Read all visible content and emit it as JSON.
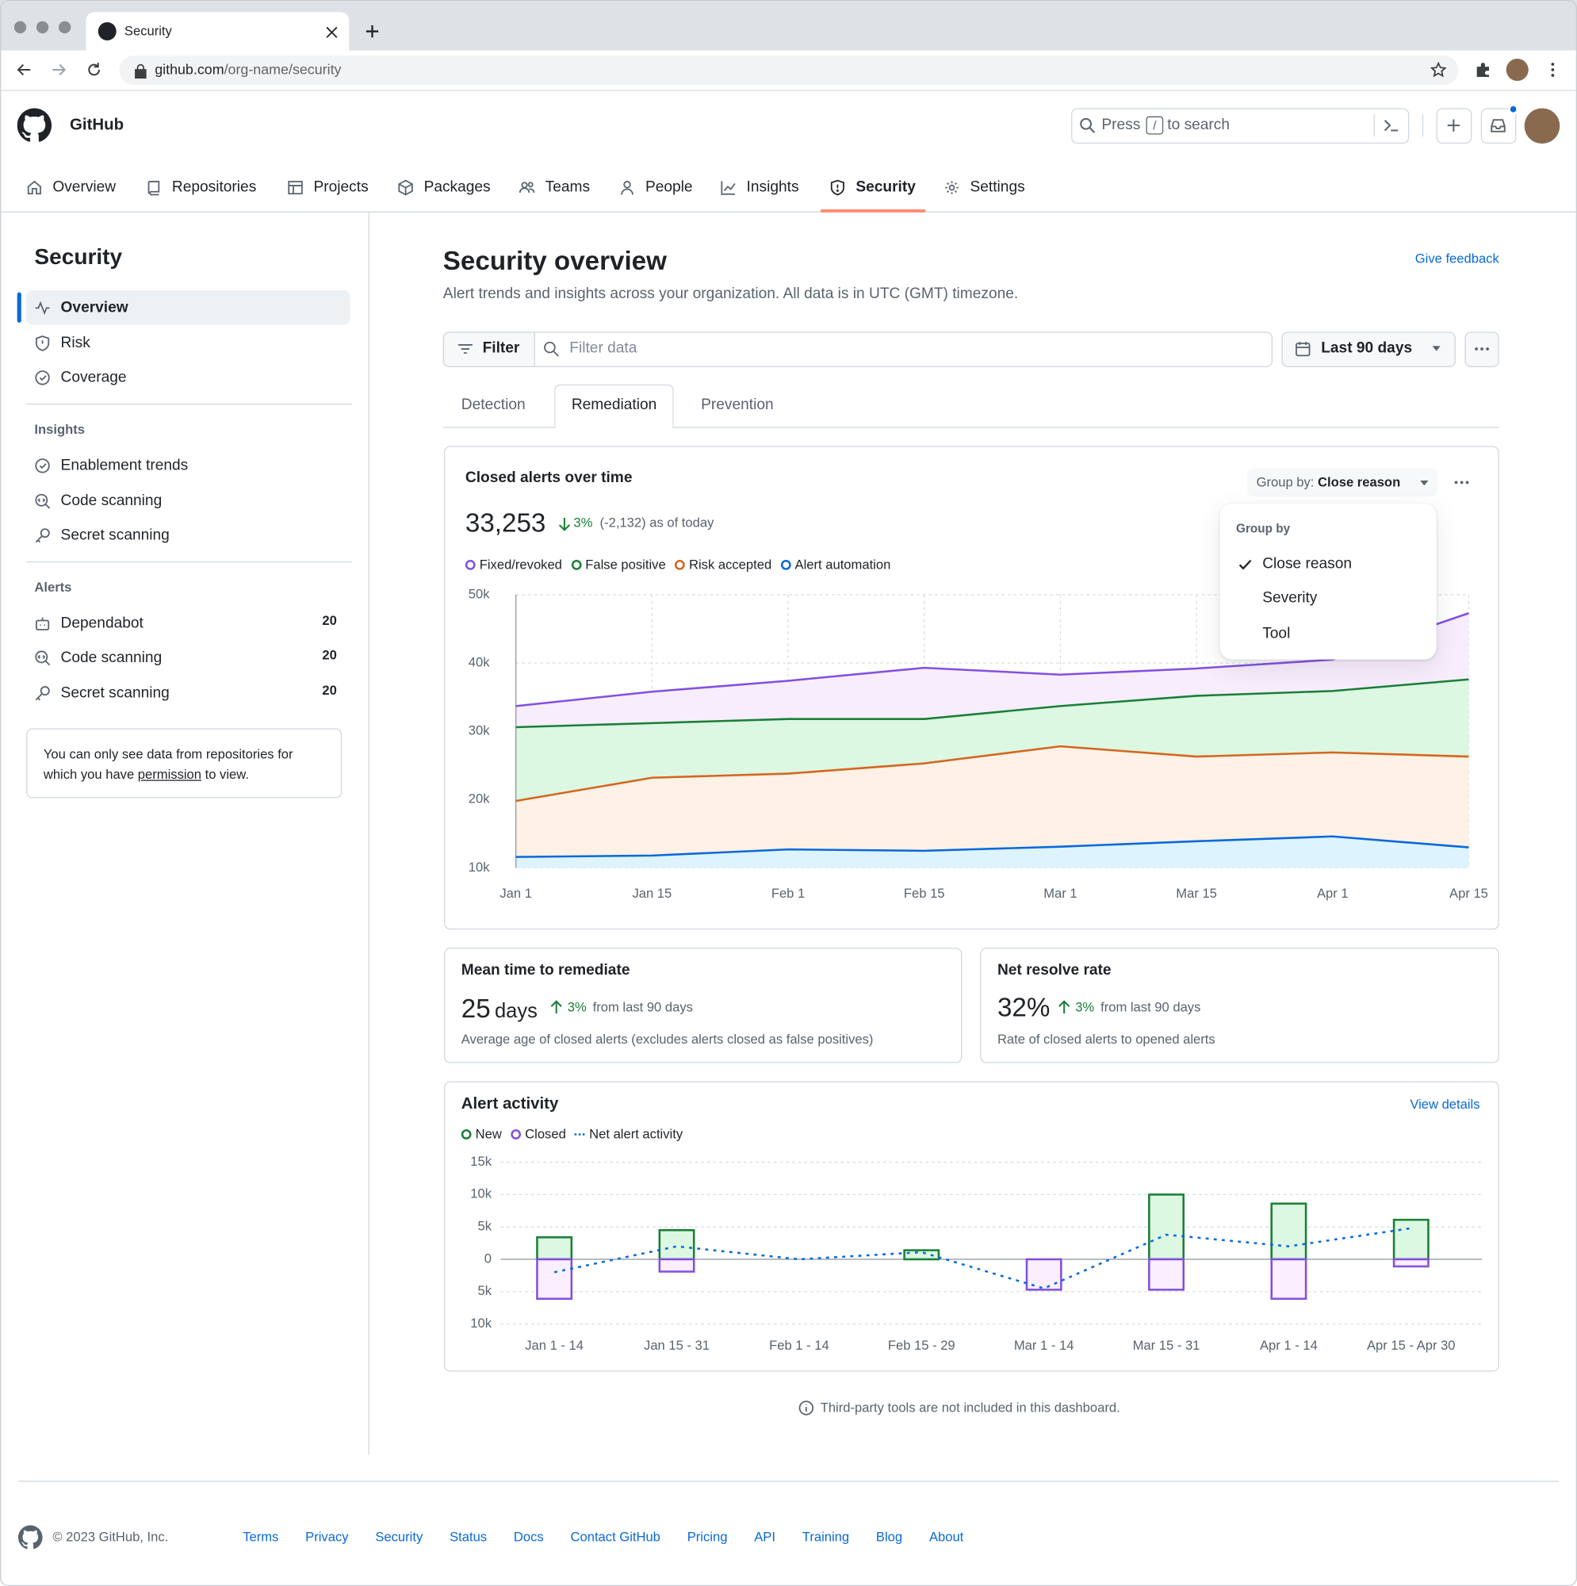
{
  "browser": {
    "tab_title": "Security",
    "url_host": "github.com",
    "url_path": "/org-name/security"
  },
  "header": {
    "brand": "GitHub",
    "search_prefix": "Press",
    "search_key": "/",
    "search_suffix": "to search"
  },
  "nav": {
    "items": [
      "Overview",
      "Repositories",
      "Projects",
      "Packages",
      "Teams",
      "People",
      "Insights",
      "Security",
      "Settings"
    ],
    "active": 7
  },
  "sidebar": {
    "title": "Security",
    "items": [
      "Overview",
      "Risk",
      "Coverage"
    ],
    "active": 0,
    "insights_heading": "Insights",
    "insights": [
      "Enablement trends",
      "Code scanning",
      "Secret scanning"
    ],
    "alerts_heading": "Alerts",
    "alerts": [
      {
        "label": "Dependabot",
        "count": 20
      },
      {
        "label": "Code scanning",
        "count": 20
      },
      {
        "label": "Secret scanning",
        "count": 20
      }
    ],
    "note": {
      "before": "You can only see data from repositories for which you have ",
      "link": "permission",
      "after": " to view."
    }
  },
  "main": {
    "title": "Security overview",
    "feedback": "Give feedback",
    "description": "Alert trends and insights across your organization. All data is in UTC (GMT) timezone.",
    "filter_button": "Filter",
    "filter_placeholder": "Filter data",
    "date_range": "Last 90 days",
    "tabs": [
      "Detection",
      "Remediation",
      "Prevention"
    ],
    "active_tab": 1
  },
  "closed_card": {
    "group_by_label": "Group by:",
    "group_by_value": "Close reason",
    "total": "33,253",
    "change": "3%",
    "change_detail": "(-2,132) as of today",
    "menu": {
      "heading": "Group by",
      "options": [
        "Close reason",
        "Severity",
        "Tool"
      ],
      "selected": 0
    }
  },
  "metrics": [
    {
      "title": "Mean time to remediate",
      "value": "25",
      "unit": "days",
      "change": "3%",
      "change_detail": "from last 90 days",
      "description": "Average age of closed alerts (excludes alerts closed as false positives)"
    },
    {
      "title": "Net resolve rate",
      "value": "32%",
      "change": "3%",
      "change_detail": "from last 90 days",
      "description": "Rate of closed alerts to opened alerts"
    }
  ],
  "activity_card": {
    "link": "View details"
  },
  "notice": "Third-party tools are not included in this dashboard.",
  "footer": {
    "copyright": "© 2023 GitHub, Inc.",
    "links": [
      "Terms",
      "Privacy",
      "Security",
      "Status",
      "Docs",
      "Contact GitHub",
      "Pricing",
      "API",
      "Training",
      "Blog",
      "About"
    ]
  },
  "chart_data": [
    {
      "type": "area",
      "title": "Closed alerts over time",
      "categories": [
        "Jan 1",
        "Jan 15",
        "Feb 1",
        "Feb 15",
        "Mar 1",
        "Mar 15",
        "Apr 1",
        "Apr 15"
      ],
      "series": [
        {
          "name": "Fixed/revoked",
          "color": "#8250df",
          "fill": "#f8edfd",
          "values": [
            33700,
            35800,
            37400,
            39300,
            38300,
            39200,
            40500,
            47300
          ]
        },
        {
          "name": "False positive",
          "color": "#1a7f37",
          "fill": "#dcf7e2",
          "values": [
            30600,
            31200,
            31800,
            31800,
            33700,
            35200,
            35900,
            37600
          ]
        },
        {
          "name": "Risk accepted",
          "color": "#d4661e",
          "fill": "#fff1e6",
          "values": [
            19800,
            23200,
            23800,
            25300,
            27800,
            26300,
            26900,
            26300
          ]
        },
        {
          "name": "Alert automation",
          "color": "#0969da",
          "fill": "#ddf3fd",
          "values": [
            11600,
            11800,
            12700,
            12500,
            13100,
            13900,
            14600,
            13000
          ]
        }
      ],
      "ylim": [
        10000,
        50000
      ],
      "yticks": [
        {
          "value": 10000,
          "label": "10k"
        },
        {
          "value": 20000,
          "label": "20k"
        },
        {
          "value": 30000,
          "label": "30k"
        },
        {
          "value": 40000,
          "label": "40k"
        },
        {
          "value": 50000,
          "label": "50k"
        }
      ],
      "grid": true
    },
    {
      "type": "bar",
      "title": "Alert activity",
      "categories": [
        "Jan 1 - 14",
        "Jan 15 - 31",
        "Feb 1 - 14",
        "Feb 15 - 29",
        "Mar 1 - 14",
        "Mar 15 - 31",
        "Apr 1 - 14",
        "Apr 15 - Apr 30"
      ],
      "series": [
        {
          "name": "New",
          "color": "#1a7f37",
          "fill": "#dcf7e2",
          "values": [
            3400,
            4500,
            0,
            1400,
            0,
            10000,
            8600,
            6100
          ]
        },
        {
          "name": "Closed",
          "color": "#8250df",
          "fill": "#fbefff",
          "values": [
            -6100,
            -1900,
            0,
            0,
            -4700,
            -4700,
            -6100,
            -1100
          ]
        },
        {
          "name": "Net alert activity",
          "color": "#0969da",
          "kind": "line",
          "values": [
            -2000,
            2000,
            0,
            1100,
            -4500,
            3800,
            2000,
            4800
          ]
        }
      ],
      "ylim": [
        -10000,
        15000
      ],
      "yticks": [
        {
          "value": 15000,
          "label": "15k"
        },
        {
          "value": 10000,
          "label": "10k"
        },
        {
          "value": 5000,
          "label": "5k"
        },
        0,
        {
          "value": -5000,
          "label": "5k"
        },
        {
          "value": -10000,
          "label": "10k"
        }
      ],
      "grid": true
    }
  ]
}
